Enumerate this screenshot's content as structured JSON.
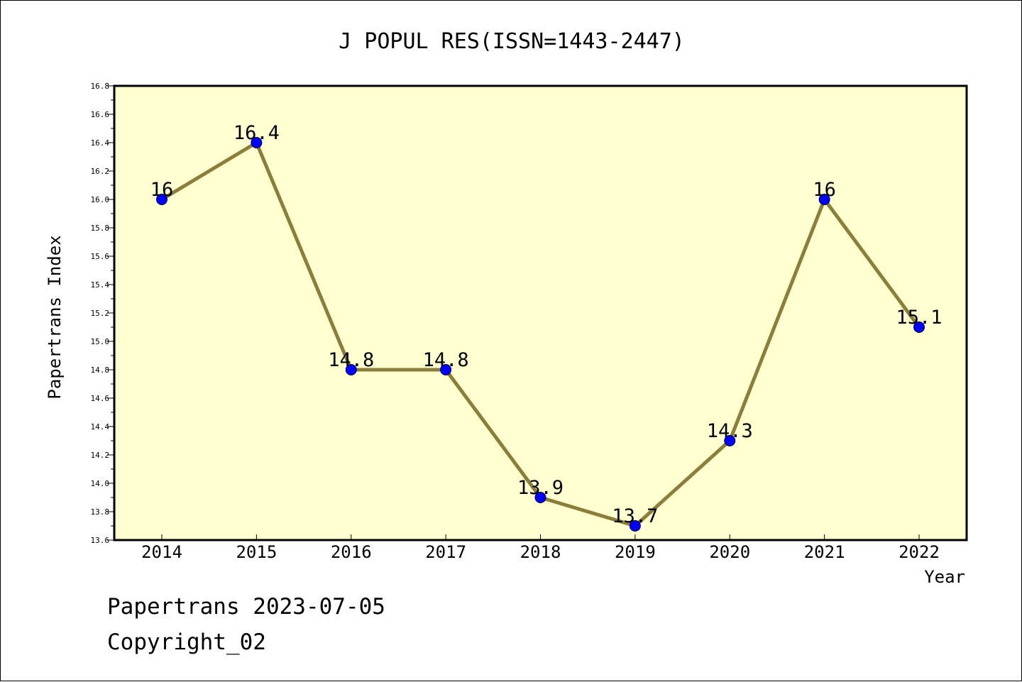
{
  "chart_data": {
    "type": "line",
    "title": "J POPUL RES(ISSN=1443-2447)",
    "xlabel": "Year",
    "ylabel": "Papertrans Index",
    "categories": [
      "2014",
      "2015",
      "2016",
      "2017",
      "2018",
      "2019",
      "2020",
      "2021",
      "2022"
    ],
    "values": [
      16,
      16.4,
      14.8,
      14.8,
      13.9,
      13.7,
      14.3,
      16,
      15.1
    ],
    "data_labels": [
      "16",
      "16.4",
      "14.8",
      "14.8",
      "13.9",
      "13.7",
      "14.3",
      "16",
      "15.1"
    ],
    "ylim": [
      13.6,
      16.8
    ],
    "ytick_labels": [
      "13.6",
      "13.8",
      "14.0",
      "14.2",
      "14.4",
      "14.6",
      "14.8",
      "15.0",
      "15.2",
      "15.4",
      "15.6",
      "15.8",
      "16.0",
      "16.2",
      "16.4",
      "16.6",
      "16.8"
    ],
    "grid": false,
    "colors": {
      "plot_background": "#ffffd0",
      "line": "#8b7d3a",
      "marker": "#0000ff"
    }
  },
  "footer": {
    "line1": "Papertrans 2023-07-05",
    "line2": "Copyright_02"
  }
}
